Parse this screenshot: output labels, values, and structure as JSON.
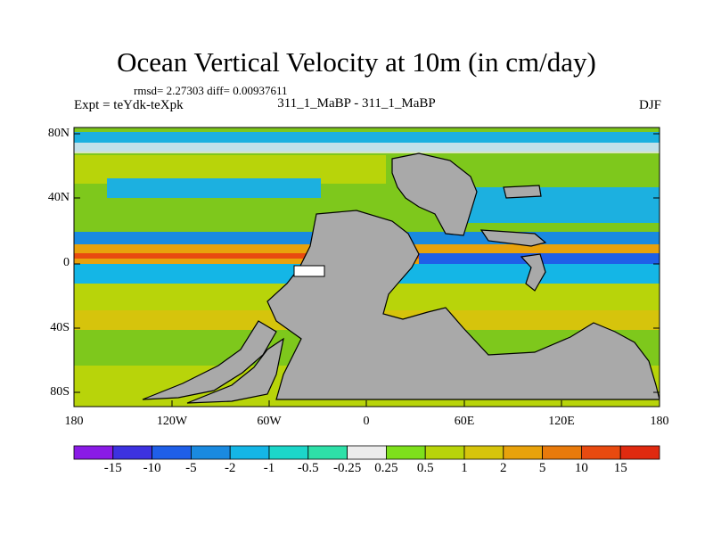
{
  "title": "Ocean Vertical Velocity at 10m (in cm/day)",
  "stats": "rmsd= 2.27303 diff= 0.00937611",
  "experiment": "Expt = teYdk-teXpk",
  "period": "311_1_MaBP - 311_1_MaBP",
  "season": "DJF",
  "lat_labels": [
    "80N",
    "40N",
    "0",
    "40S",
    "80S"
  ],
  "lon_labels": [
    "180",
    "120W",
    "60W",
    "0",
    "60E",
    "120E",
    "180"
  ],
  "colorbar": {
    "labels": [
      "-15",
      "-10",
      "-5",
      "-2",
      "-1",
      "-0.5",
      "-0.25",
      "0.25",
      "0.5",
      "1",
      "2",
      "5",
      "10",
      "15"
    ],
    "colors": [
      "#8a1be6",
      "#3d32e0",
      "#1f5fe8",
      "#1a8ae0",
      "#14b6e6",
      "#1cd6c9",
      "#2ee0a8",
      "#ececec",
      "#7ee01c",
      "#b8d40a",
      "#d6c40c",
      "#e8a20c",
      "#e87a0c",
      "#e84a10",
      "#e02a10"
    ]
  },
  "colors": {
    "land": "#a9a9a9",
    "land_edge": "#000000",
    "ocean_band_north": "#1cb0e0",
    "ocean_band_equator": "#e8a20c",
    "ocean_band_south": "#7ec81c"
  }
}
